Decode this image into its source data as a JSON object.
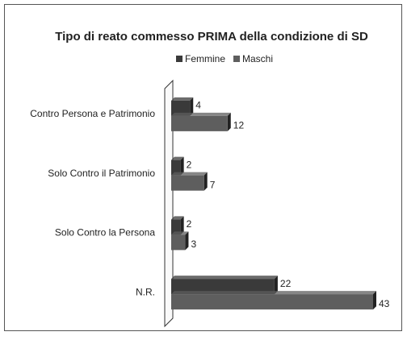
{
  "chart_data": {
    "type": "bar",
    "orientation": "horizontal",
    "title": "Tipo di reato commesso PRIMA della condizione di SD",
    "categories": [
      "Contro Persona e Patrimonio",
      "Solo Contro il Patrimonio",
      "Solo Contro la Persona",
      "N.R."
    ],
    "series": [
      {
        "name": "Femmine",
        "color": "#3a3a3a",
        "values": [
          4,
          2,
          2,
          22
        ]
      },
      {
        "name": "Maschi",
        "color": "#5e5e5e",
        "values": [
          12,
          7,
          3,
          43
        ]
      }
    ],
    "legend": "top",
    "data_labels": true
  }
}
